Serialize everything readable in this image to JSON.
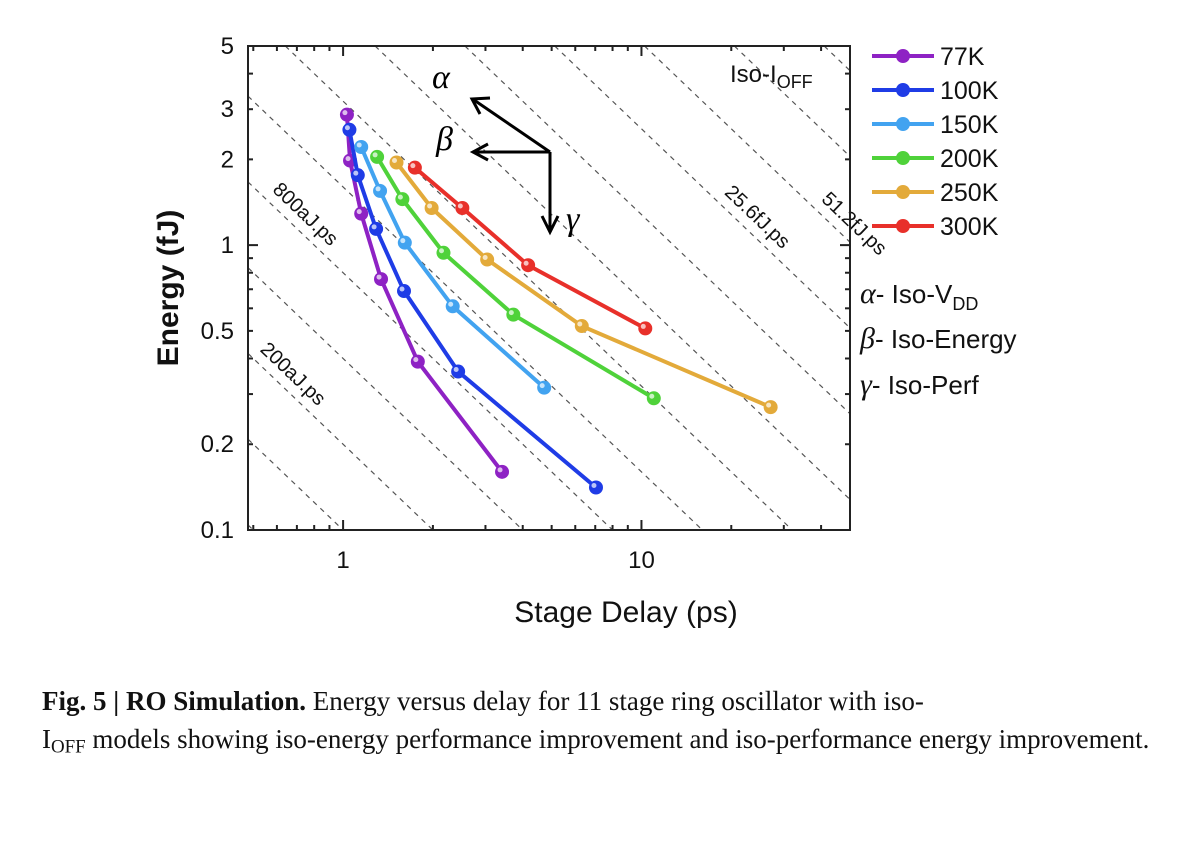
{
  "chart_data": {
    "type": "line",
    "xlabel": "Stage Delay (ps)",
    "ylabel": "Energy (fJ)",
    "xscale": "log",
    "yscale": "log",
    "xlim": [
      0.48,
      50
    ],
    "ylim": [
      0.1,
      5
    ],
    "xticks": [
      "1",
      "10"
    ],
    "xtick_values": [
      1,
      10
    ],
    "yticks": [
      "0.1",
      "0.2",
      "0.5",
      "1",
      "2",
      "3",
      "5"
    ],
    "ytick_values": [
      0.1,
      0.2,
      0.5,
      1,
      2,
      3,
      5
    ],
    "legend_position": "right",
    "series": [
      {
        "name": "77K",
        "color": "#8e22c4",
        "x": [
          1.03,
          1.055,
          1.15,
          1.34,
          1.78,
          3.41
        ],
        "y": [
          2.87,
          1.98,
          1.29,
          0.76,
          0.39,
          0.16
        ]
      },
      {
        "name": "100K",
        "color": "#1f3ce6",
        "x": [
          1.05,
          1.12,
          1.29,
          1.6,
          2.43,
          7.04
        ],
        "y": [
          2.54,
          1.76,
          1.14,
          0.69,
          0.36,
          0.141
        ]
      },
      {
        "name": "150K",
        "color": "#42a3f0",
        "x": [
          1.15,
          1.33,
          1.61,
          2.33,
          4.72
        ],
        "y": [
          2.21,
          1.55,
          1.02,
          0.61,
          0.316
        ]
      },
      {
        "name": "200K",
        "color": "#4fd23a",
        "x": [
          1.3,
          1.58,
          2.17,
          3.72,
          11.0
        ],
        "y": [
          2.04,
          1.45,
          0.94,
          0.57,
          0.29
        ]
      },
      {
        "name": "250K",
        "color": "#e3aa3a",
        "x": [
          1.51,
          1.98,
          3.04,
          6.31,
          27.1
        ],
        "y": [
          1.95,
          1.35,
          0.89,
          0.52,
          0.27
        ]
      },
      {
        "name": "300K",
        "color": "#e8302a",
        "x": [
          1.74,
          2.51,
          4.17,
          10.3
        ],
        "y": [
          1.87,
          1.35,
          0.85,
          0.51
        ]
      }
    ],
    "iso_lines_fJps": [
      0.05,
      0.1,
      0.2,
      0.4,
      0.8,
      1.6,
      3.2,
      6.4,
      12.8,
      25.6,
      51.2,
      102.4,
      204.8
    ],
    "iso_labels": [
      {
        "text": "200aJ.ps",
        "value": 0.2
      },
      {
        "text": "800aJ.ps",
        "value": 0.8
      },
      {
        "text": "25.6fJ.ps",
        "value": 25.6
      },
      {
        "text": "51.2fJ.ps",
        "value": 51.2
      }
    ],
    "annotations": {
      "iso_ioff": "Iso-I",
      "iso_ioff_sub": "OFF",
      "alpha": "α",
      "beta": "β",
      "gamma": "γ",
      "alpha_desc": "- Iso-V",
      "alpha_desc_sub": "DD",
      "beta_desc": "- Iso-Energy",
      "gamma_desc": "- Iso-Perf"
    }
  },
  "caption": {
    "label": "Fig. 5 | RO Simulation.",
    "text1": " Energy versus delay for 11 stage ring oscillator with iso-",
    "ioff": "I",
    "ioff_sub": "OFF",
    "text2": " models showing iso-energy performance improvement and iso-performance energy improvement."
  }
}
